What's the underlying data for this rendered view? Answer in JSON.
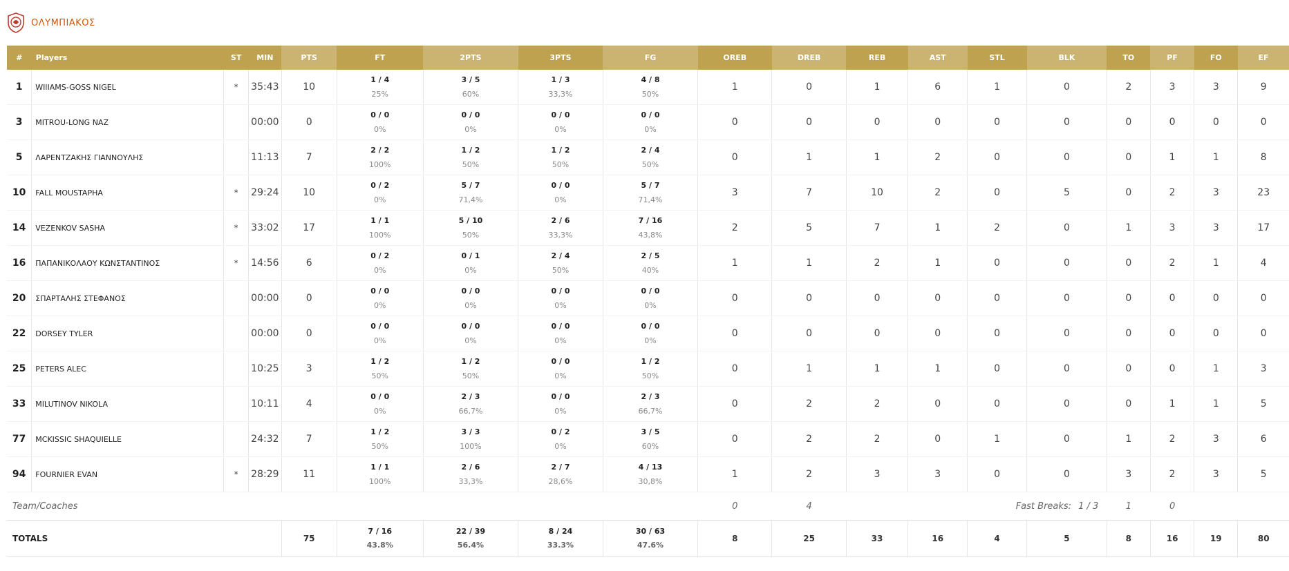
{
  "team": {
    "name": "ΟΛΥΜΠΙΑΚΟΣ"
  },
  "colors": {
    "header_dark": "#bfa24f",
    "header_light": "#cbb371",
    "team_name": "#d35400"
  },
  "headers": [
    "#",
    "Players",
    "ST",
    "MIN",
    "PTS",
    "FT",
    "2PTS",
    "3PTS",
    "FG",
    "OREB",
    "DREB",
    "REB",
    "AST",
    "STL",
    "BLK",
    "TO",
    "PF",
    "FO",
    "EF"
  ],
  "players": [
    {
      "num": "1",
      "name": "WIlIAMS-GOSS NIGEL",
      "st": "*",
      "min": "35:43",
      "pts": "10",
      "ft": "1 / 4",
      "ft_pct": "25%",
      "p2": "3 / 5",
      "p2_pct": "60%",
      "p3": "1 / 3",
      "p3_pct": "33,3%",
      "fg": "4 / 8",
      "fg_pct": "50%",
      "oreb": "1",
      "dreb": "0",
      "reb": "1",
      "ast": "6",
      "stl": "1",
      "blk": "0",
      "to": "2",
      "pf": "3",
      "fo": "3",
      "ef": "9"
    },
    {
      "num": "3",
      "name": "MITROU-LONG NAZ",
      "st": "",
      "min": "00:00",
      "pts": "0",
      "ft": "0 / 0",
      "ft_pct": "0%",
      "p2": "0 / 0",
      "p2_pct": "0%",
      "p3": "0 / 0",
      "p3_pct": "0%",
      "fg": "0 / 0",
      "fg_pct": "0%",
      "oreb": "0",
      "dreb": "0",
      "reb": "0",
      "ast": "0",
      "stl": "0",
      "blk": "0",
      "to": "0",
      "pf": "0",
      "fo": "0",
      "ef": "0"
    },
    {
      "num": "5",
      "name": "ΛΑΡΕΝΤΖΑΚΗΣ ΓΙΑΝΝΟΥΛΗΣ",
      "st": "",
      "min": "11:13",
      "pts": "7",
      "ft": "2 / 2",
      "ft_pct": "100%",
      "p2": "1 / 2",
      "p2_pct": "50%",
      "p3": "1 / 2",
      "p3_pct": "50%",
      "fg": "2 / 4",
      "fg_pct": "50%",
      "oreb": "0",
      "dreb": "1",
      "reb": "1",
      "ast": "2",
      "stl": "0",
      "blk": "0",
      "to": "0",
      "pf": "1",
      "fo": "1",
      "ef": "8"
    },
    {
      "num": "10",
      "name": "FALL MOUSTAPHA",
      "st": "*",
      "min": "29:24",
      "pts": "10",
      "ft": "0 / 2",
      "ft_pct": "0%",
      "p2": "5 / 7",
      "p2_pct": "71,4%",
      "p3": "0 / 0",
      "p3_pct": "0%",
      "fg": "5 / 7",
      "fg_pct": "71,4%",
      "oreb": "3",
      "dreb": "7",
      "reb": "10",
      "ast": "2",
      "stl": "0",
      "blk": "5",
      "to": "0",
      "pf": "2",
      "fo": "3",
      "ef": "23"
    },
    {
      "num": "14",
      "name": "VEZENKOV SASHA",
      "st": "*",
      "min": "33:02",
      "pts": "17",
      "ft": "1 / 1",
      "ft_pct": "100%",
      "p2": "5 / 10",
      "p2_pct": "50%",
      "p3": "2 / 6",
      "p3_pct": "33,3%",
      "fg": "7 / 16",
      "fg_pct": "43,8%",
      "oreb": "2",
      "dreb": "5",
      "reb": "7",
      "ast": "1",
      "stl": "2",
      "blk": "0",
      "to": "1",
      "pf": "3",
      "fo": "3",
      "ef": "17"
    },
    {
      "num": "16",
      "name": "ΠΑΠΑΝΙΚΟΛΑΟΥ ΚΩΝΣΤΑΝΤΙΝΟΣ",
      "st": "*",
      "min": "14:56",
      "pts": "6",
      "ft": "0 / 2",
      "ft_pct": "0%",
      "p2": "0 / 1",
      "p2_pct": "0%",
      "p3": "2 / 4",
      "p3_pct": "50%",
      "fg": "2 / 5",
      "fg_pct": "40%",
      "oreb": "1",
      "dreb": "1",
      "reb": "2",
      "ast": "1",
      "stl": "0",
      "blk": "0",
      "to": "0",
      "pf": "2",
      "fo": "1",
      "ef": "4"
    },
    {
      "num": "20",
      "name": "ΣΠΑΡΤΑΛΗΣ ΣΤΕΦΑΝΟΣ",
      "st": "",
      "min": "00:00",
      "pts": "0",
      "ft": "0 / 0",
      "ft_pct": "0%",
      "p2": "0 / 0",
      "p2_pct": "0%",
      "p3": "0 / 0",
      "p3_pct": "0%",
      "fg": "0 / 0",
      "fg_pct": "0%",
      "oreb": "0",
      "dreb": "0",
      "reb": "0",
      "ast": "0",
      "stl": "0",
      "blk": "0",
      "to": "0",
      "pf": "0",
      "fo": "0",
      "ef": "0"
    },
    {
      "num": "22",
      "name": "DORSEY TYLER",
      "st": "",
      "min": "00:00",
      "pts": "0",
      "ft": "0 / 0",
      "ft_pct": "0%",
      "p2": "0 / 0",
      "p2_pct": "0%",
      "p3": "0 / 0",
      "p3_pct": "0%",
      "fg": "0 / 0",
      "fg_pct": "0%",
      "oreb": "0",
      "dreb": "0",
      "reb": "0",
      "ast": "0",
      "stl": "0",
      "blk": "0",
      "to": "0",
      "pf": "0",
      "fo": "0",
      "ef": "0"
    },
    {
      "num": "25",
      "name": "PETERS ALEC",
      "st": "",
      "min": "10:25",
      "pts": "3",
      "ft": "1 / 2",
      "ft_pct": "50%",
      "p2": "1 / 2",
      "p2_pct": "50%",
      "p3": "0 / 0",
      "p3_pct": "0%",
      "fg": "1 / 2",
      "fg_pct": "50%",
      "oreb": "0",
      "dreb": "1",
      "reb": "1",
      "ast": "1",
      "stl": "0",
      "blk": "0",
      "to": "0",
      "pf": "0",
      "fo": "1",
      "ef": "3"
    },
    {
      "num": "33",
      "name": "MILUTINOV NIKOLA",
      "st": "",
      "min": "10:11",
      "pts": "4",
      "ft": "0 / 0",
      "ft_pct": "0%",
      "p2": "2 / 3",
      "p2_pct": "66,7%",
      "p3": "0 / 0",
      "p3_pct": "0%",
      "fg": "2 / 3",
      "fg_pct": "66,7%",
      "oreb": "0",
      "dreb": "2",
      "reb": "2",
      "ast": "0",
      "stl": "0",
      "blk": "0",
      "to": "0",
      "pf": "1",
      "fo": "1",
      "ef": "5"
    },
    {
      "num": "77",
      "name": "MCKISSIC SHAQUIELLE",
      "st": "",
      "min": "24:32",
      "pts": "7",
      "ft": "1 / 2",
      "ft_pct": "50%",
      "p2": "3 / 3",
      "p2_pct": "100%",
      "p3": "0 / 2",
      "p3_pct": "0%",
      "fg": "3 / 5",
      "fg_pct": "60%",
      "oreb": "0",
      "dreb": "2",
      "reb": "2",
      "ast": "0",
      "stl": "1",
      "blk": "0",
      "to": "1",
      "pf": "2",
      "fo": "3",
      "ef": "6"
    },
    {
      "num": "94",
      "name": "FOURNIER EVAN",
      "st": "*",
      "min": "28:29",
      "pts": "11",
      "ft": "1 / 1",
      "ft_pct": "100%",
      "p2": "2 / 6",
      "p2_pct": "33,3%",
      "p3": "2 / 7",
      "p3_pct": "28,6%",
      "fg": "4 / 13",
      "fg_pct": "30,8%",
      "oreb": "1",
      "dreb": "2",
      "reb": "3",
      "ast": "3",
      "stl": "0",
      "blk": "0",
      "to": "3",
      "pf": "2",
      "fo": "3",
      "ef": "5"
    }
  ],
  "team_coaches": {
    "label": "Team/Coaches",
    "oreb": "0",
    "dreb": "4",
    "fast_breaks_label": "Fast Breaks:",
    "fast_breaks_value": "1 / 3",
    "to": "1",
    "pf": "0"
  },
  "totals": {
    "label": "TOTALS",
    "pts": "75",
    "ft": "7 / 16",
    "ft_pct": "43.8%",
    "p2": "22 / 39",
    "p2_pct": "56.4%",
    "p3": "8 / 24",
    "p3_pct": "33.3%",
    "fg": "30 / 63",
    "fg_pct": "47.6%",
    "oreb": "8",
    "dreb": "25",
    "reb": "33",
    "ast": "16",
    "stl": "4",
    "blk": "5",
    "to": "8",
    "pf": "16",
    "fo": "19",
    "ef": "80"
  }
}
